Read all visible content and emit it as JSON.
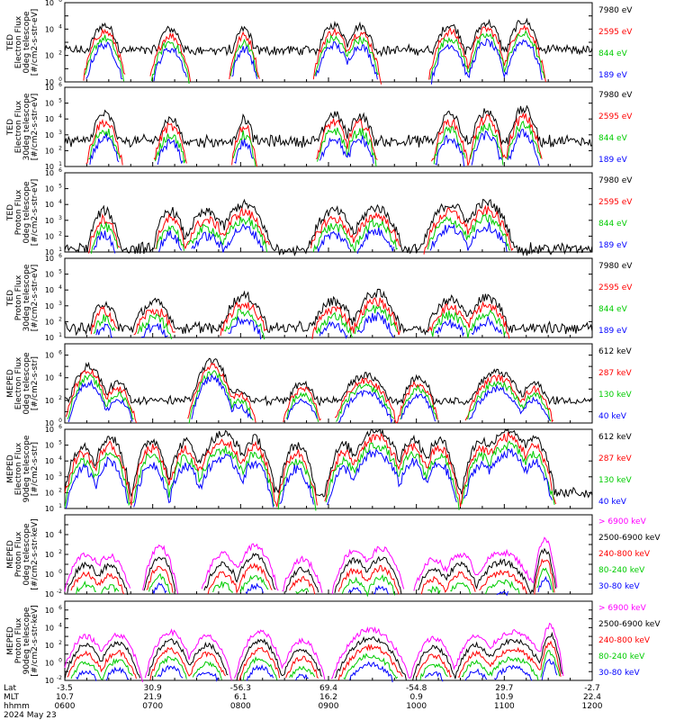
{
  "panels": [
    {
      "ylabel": [
        "TED",
        "Electron Flux",
        "0deg telescope",
        "[#/cm2-s-str-eV]"
      ],
      "ytick_exps": [
        0,
        2,
        4,
        6
      ],
      "ymin_exp": 0,
      "ymax_exp": 6,
      "legend": [
        {
          "label": "7980 eV",
          "color": "#000000"
        },
        {
          "label": "2595 eV",
          "color": "#ff0000"
        },
        {
          "label": "844 eV",
          "color": "#00cc00"
        },
        {
          "label": "189 eV",
          "color": "#0000ff"
        }
      ],
      "kind": "ted_e",
      "background": 2.4
    },
    {
      "ylabel": [
        "TED",
        "Electron Flux",
        "30deg telescope",
        "[#/cm2-s-str-eV]"
      ],
      "ytick_exps": [
        1,
        2,
        3,
        4,
        5,
        6
      ],
      "ymin_exp": 1,
      "ymax_exp": 6,
      "legend": [
        {
          "label": "7980 eV",
          "color": "#000000"
        },
        {
          "label": "2595 eV",
          "color": "#ff0000"
        },
        {
          "label": "844 eV",
          "color": "#00cc00"
        },
        {
          "label": "189 eV",
          "color": "#0000ff"
        }
      ],
      "kind": "ted_e",
      "background": 2.6
    },
    {
      "ylabel": [
        "TED",
        "Proton Flux",
        "0deg telescope",
        "[#/cm2-s-str-eV]"
      ],
      "ytick_exps": [
        1,
        2,
        3,
        4,
        5,
        6
      ],
      "ymin_exp": 1,
      "ymax_exp": 6,
      "legend": [
        {
          "label": "7980 eV",
          "color": "#000000"
        },
        {
          "label": "2595 eV",
          "color": "#ff0000"
        },
        {
          "label": "844 eV",
          "color": "#00cc00"
        },
        {
          "label": "189 eV",
          "color": "#0000ff"
        }
      ],
      "kind": "ted_p",
      "background": 1.2
    },
    {
      "ylabel": [
        "TED",
        "Proton Flux",
        "30deg telescope",
        "[#/cm2-s-str-eV]"
      ],
      "ytick_exps": [
        1,
        2,
        3,
        4,
        5,
        6
      ],
      "ymin_exp": 1,
      "ymax_exp": 6,
      "legend": [
        {
          "label": "7980 eV",
          "color": "#000000"
        },
        {
          "label": "2595 eV",
          "color": "#ff0000"
        },
        {
          "label": "844 eV",
          "color": "#00cc00"
        },
        {
          "label": "189 eV",
          "color": "#0000ff"
        }
      ],
      "kind": "ted_p30",
      "background": 1.6
    },
    {
      "ylabel": [
        "MEPED",
        "Electron Flux",
        "0deg telescope",
        "[#/cm2-s-str]"
      ],
      "ytick_exps": [
        0,
        2,
        4,
        6
      ],
      "ymin_exp": 0,
      "ymax_exp": 7,
      "legend": [
        {
          "label": "612 keV",
          "color": "#000000"
        },
        {
          "label": "287 keV",
          "color": "#ff0000"
        },
        {
          "label": "130 keV",
          "color": "#00cc00"
        },
        {
          "label": "40 keV",
          "color": "#0000ff"
        }
      ],
      "kind": "mep_e0",
      "background": 2.0
    },
    {
      "ylabel": [
        "MEPED",
        "Electron Flux",
        "90deg telescope",
        "[#/cm2-s-str]"
      ],
      "ytick_exps": [
        1,
        2,
        3,
        4,
        5,
        6
      ],
      "ymin_exp": 1,
      "ymax_exp": 6,
      "legend": [
        {
          "label": "612 keV",
          "color": "#000000"
        },
        {
          "label": "287 keV",
          "color": "#ff0000"
        },
        {
          "label": "130 keV",
          "color": "#00cc00"
        },
        {
          "label": "40 keV",
          "color": "#0000ff"
        }
      ],
      "kind": "mep_e90",
      "background": 2.0
    },
    {
      "ylabel": [
        "MEPED",
        "Proton Flux",
        "0deg telescope",
        "[#/cm2-s-str-keV]"
      ],
      "ytick_exps": [
        -2,
        0,
        2,
        4
      ],
      "ymin_exp": -2,
      "ymax_exp": 6,
      "legend": [
        {
          "label": "> 6900 keV",
          "color": "#ff00ff"
        },
        {
          "label": "2500-6900 keV",
          "color": "#000000"
        },
        {
          "label": "240-800 keV",
          "color": "#ff0000"
        },
        {
          "label": "80-240 keV",
          "color": "#00cc00"
        },
        {
          "label": "30-80 keV",
          "color": "#0000ff"
        }
      ],
      "kind": "mep_p0",
      "background": 0
    },
    {
      "ylabel": [
        "MEPED",
        "Proton Flux",
        "90deg telescope",
        "[#/cm2-s-str-keV]"
      ],
      "ytick_exps": [
        -2,
        0,
        2,
        4,
        6
      ],
      "ymin_exp": -2,
      "ymax_exp": 7,
      "legend": [
        {
          "label": "> 6900 keV",
          "color": "#ff00ff"
        },
        {
          "label": "2500-6900 keV",
          "color": "#000000"
        },
        {
          "label": "240-800 keV",
          "color": "#ff0000"
        },
        {
          "label": "80-240 keV",
          "color": "#00cc00"
        },
        {
          "label": "30-80 keV",
          "color": "#0000ff"
        }
      ],
      "kind": "mep_p90",
      "background": 0
    }
  ],
  "xaxis": {
    "row_labels": [
      "Lat",
      "MLT",
      "hhmm"
    ],
    "date": "2024 May 23",
    "ticks": [
      {
        "lat": "-3.5",
        "mlt": "10.7",
        "hhmm": "0600"
      },
      {
        "lat": "30.9",
        "mlt": "21.9",
        "hhmm": "0700"
      },
      {
        "lat": "-56.3",
        "mlt": "6.1",
        "hhmm": "0800"
      },
      {
        "lat": "69.4",
        "mlt": "16.2",
        "hhmm": "0900"
      },
      {
        "lat": "-54.8",
        "mlt": "0.9",
        "hhmm": "1000"
      },
      {
        "lat": "29.7",
        "mlt": "10.9",
        "hhmm": "1100"
      },
      {
        "lat": "-2.7",
        "mlt": "22.4",
        "hhmm": "1200"
      }
    ]
  },
  "chart_data": {
    "type": "line",
    "x_unit": "UT hhmm",
    "x_range": [
      "0600",
      "1200"
    ],
    "y_scale": "log",
    "passes_peak_times": [
      "0628",
      "0645",
      "0735",
      "0753",
      "0840",
      "0904",
      "0942",
      "0953",
      "1020",
      "1040",
      "1109",
      "1130"
    ],
    "series_groups": [
      "TED Electron Flux 0deg: 7980 eV, 2595 eV, 844 eV, 189 eV",
      "TED Electron Flux 30deg: 7980 eV, 2595 eV, 844 eV, 189 eV",
      "TED Proton Flux 0deg: 7980 eV, 2595 eV, 844 eV, 189 eV",
      "TED Proton Flux 30deg: 7980 eV, 2595 eV, 844 eV, 189 eV",
      "MEPED Electron Flux 0deg: 612 keV, 287 keV, 130 keV, 40 keV",
      "MEPED Electron Flux 90deg: 612 keV, 287 keV, 130 keV, 40 keV",
      "MEPED Proton Flux 0deg: > 6900 keV, 2500-6900 keV, 240-800 keV, 80-240 keV, 30-80 keV",
      "MEPED Proton Flux 90deg: > 6900 keV, 2500-6900 keV, 240-800 keV, 80-240 keV, 30-80 keV"
    ]
  }
}
